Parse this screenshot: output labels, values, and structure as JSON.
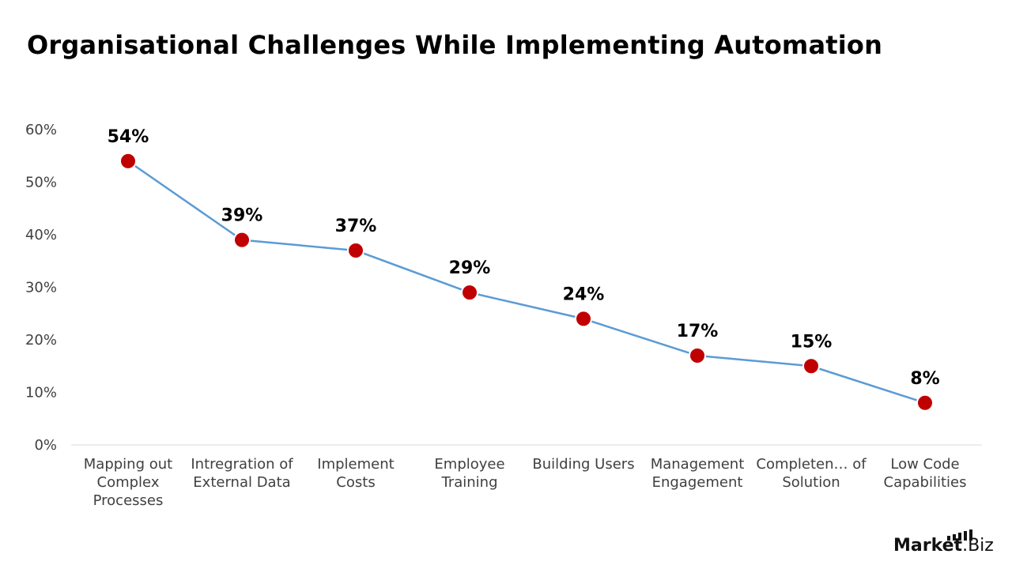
{
  "title": "Organisational Challenges While Implementing Automation",
  "brand": {
    "main": "Market",
    "suffix": ".Biz",
    "color": "#111111"
  },
  "colors": {
    "line": "#5B9BD5",
    "marker": "#C00000",
    "marker_stroke": "#FFFFFF",
    "axis": "#D9D9D9"
  },
  "chart_data": {
    "type": "line",
    "title": "Organisational Challenges While Implementing Automation",
    "categories": [
      [
        "Mapping out",
        "Complex",
        "Processes"
      ],
      [
        "Intregration of",
        "External Data"
      ],
      [
        "Implement",
        "Costs"
      ],
      [
        "Employee",
        "Training"
      ],
      [
        "Building Users"
      ],
      [
        "Management",
        "Engagement"
      ],
      [
        "Completen… of",
        "Solution"
      ],
      [
        "Low Code",
        "Capabilities"
      ]
    ],
    "series": [
      {
        "values": [
          54,
          39,
          37,
          29,
          24,
          17,
          15,
          8
        ],
        "data_labels": [
          "54%",
          "39%",
          "37%",
          "29%",
          "24%",
          "17%",
          "15%",
          "8%"
        ]
      }
    ],
    "yticks": [
      "0%",
      "10%",
      "20%",
      "30%",
      "40%",
      "50%",
      "60%"
    ],
    "ylim": [
      0,
      60
    ],
    "grid": false,
    "legend": "none",
    "xlabel": "",
    "ylabel": ""
  }
}
